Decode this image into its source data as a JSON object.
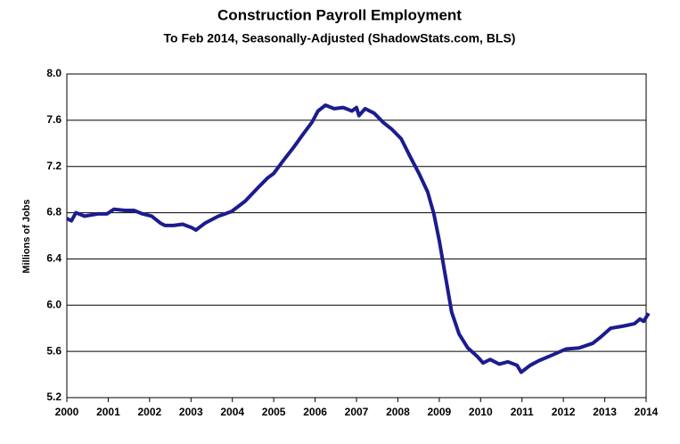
{
  "chart_data": {
    "type": "line",
    "title": "Construction Payroll Employment",
    "subtitle": "To Feb 2014, Seasonally-Adjusted (ShadowStats.com, BLS)",
    "y_label": "Millions  of Jobs",
    "x": [
      2000.0,
      2000.11,
      2000.22,
      2000.43,
      2000.75,
      2000.97,
      2001.14,
      2001.4,
      2001.62,
      2001.83,
      2002.05,
      2002.26,
      2002.37,
      2002.58,
      2002.8,
      2003.02,
      2003.12,
      2003.34,
      2003.66,
      2003.98,
      2004.31,
      2004.63,
      2004.85,
      2005.0,
      2005.23,
      2005.49,
      2005.71,
      2005.92,
      2006.07,
      2006.25,
      2006.46,
      2006.68,
      2006.89,
      2007.0,
      2007.06,
      2007.21,
      2007.43,
      2007.65,
      2007.86,
      2008.08,
      2008.29,
      2008.51,
      2008.72,
      2008.87,
      2009.0,
      2009.15,
      2009.3,
      2009.48,
      2009.69,
      2009.91,
      2010.06,
      2010.23,
      2010.45,
      2010.66,
      2010.88,
      2010.98,
      2011.2,
      2011.41,
      2011.74,
      2012.06,
      2012.38,
      2012.71,
      2012.92,
      2013.14,
      2013.46,
      2013.72,
      2013.85,
      2013.94,
      2014.06
    ],
    "series": [
      {
        "name": "Construction Payroll Employment",
        "color": "#1c1c8e",
        "values": [
          6.75,
          6.73,
          6.8,
          6.77,
          6.79,
          6.79,
          6.83,
          6.82,
          6.82,
          6.79,
          6.77,
          6.71,
          6.69,
          6.69,
          6.7,
          6.67,
          6.65,
          6.71,
          6.77,
          6.81,
          6.9,
          7.02,
          7.1,
          7.14,
          7.25,
          7.37,
          7.48,
          7.58,
          7.68,
          7.73,
          7.7,
          7.71,
          7.68,
          7.71,
          7.64,
          7.7,
          7.66,
          7.58,
          7.52,
          7.44,
          7.29,
          7.14,
          6.98,
          6.79,
          6.56,
          6.25,
          5.94,
          5.75,
          5.63,
          5.56,
          5.5,
          5.53,
          5.49,
          5.51,
          5.48,
          5.42,
          5.48,
          5.52,
          5.57,
          5.62,
          5.63,
          5.67,
          5.73,
          5.8,
          5.82,
          5.84,
          5.88,
          5.86,
          5.93
        ]
      }
    ],
    "xlim": [
      2000,
      2014
    ],
    "xticks": [
      2000,
      2001,
      2002,
      2003,
      2004,
      2005,
      2006,
      2007,
      2008,
      2009,
      2010,
      2011,
      2012,
      2013,
      2014
    ],
    "ylim": [
      5.2,
      8.0
    ],
    "yticks": [
      5.2,
      5.6,
      {
        "value": 6,
        "label": "6.0"
      },
      6.4,
      6.8,
      7.2,
      7.6,
      {
        "value": 8,
        "label": "8.0"
      }
    ],
    "grid": true
  }
}
